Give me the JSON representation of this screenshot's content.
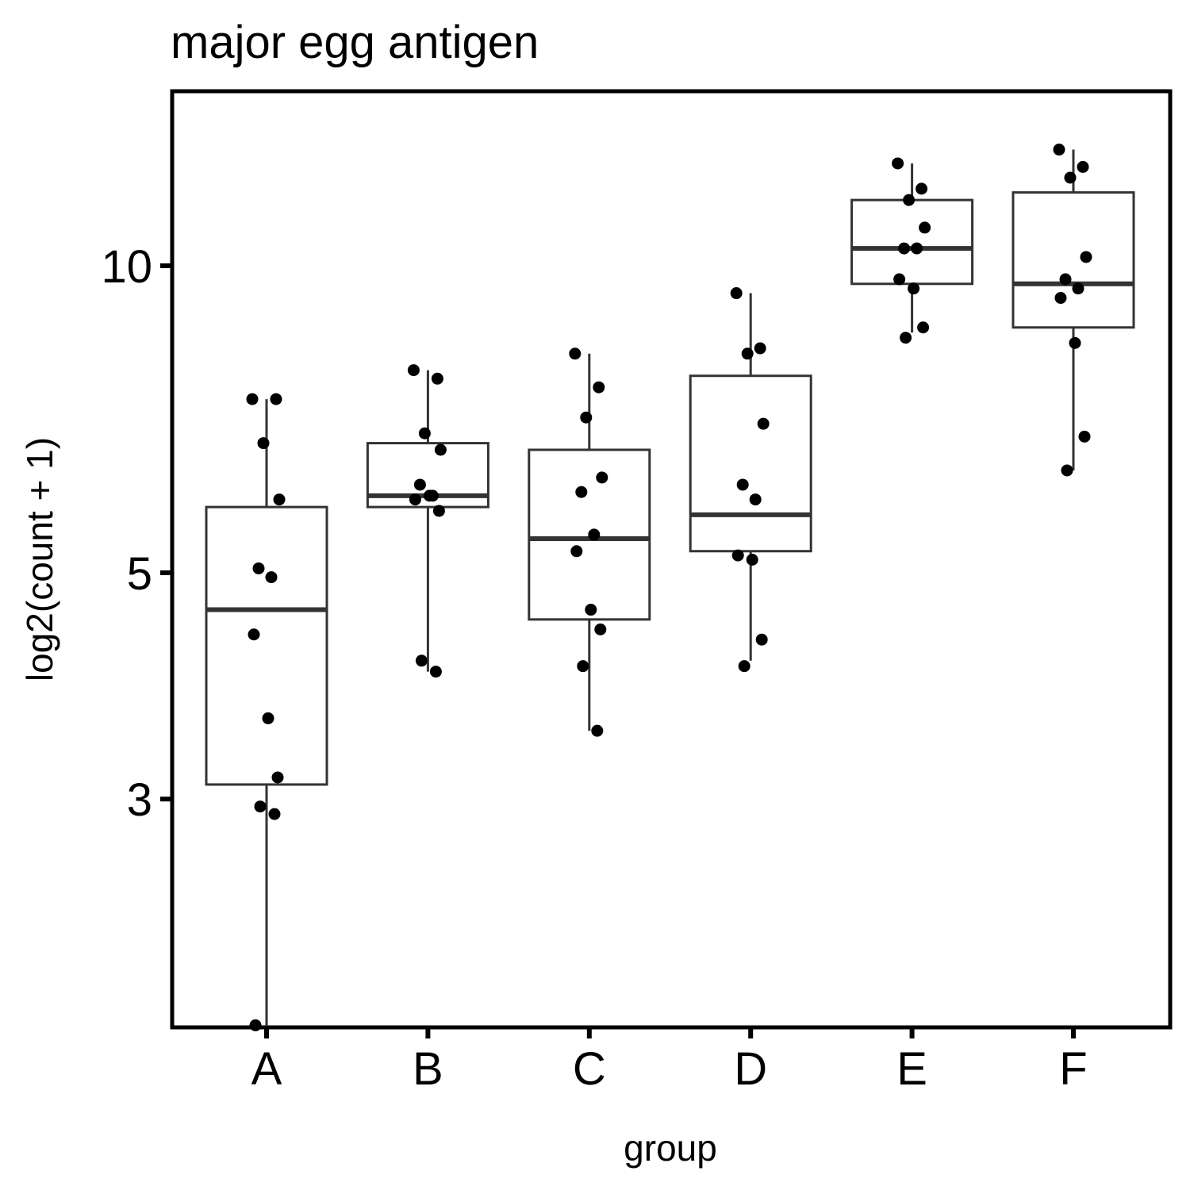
{
  "chart_data": {
    "type": "box",
    "title": "major egg antigen",
    "xlabel": "group",
    "ylabel": "log2(count + 1)",
    "y_scale": "log10",
    "ylim": [
      1.7,
      13.0
    ],
    "y_ticks": [
      3,
      5,
      10
    ],
    "y_tick_labels": [
      "3",
      "5",
      "10"
    ],
    "grid": false,
    "legend": "none",
    "categories": [
      "A",
      "B",
      "C",
      "D",
      "E",
      "F"
    ],
    "boxes": [
      {
        "group": "A",
        "whisker_low": 1.8,
        "q1": 3.1,
        "median": 4.6,
        "q3": 5.8,
        "whisker_high": 7.4
      },
      {
        "group": "B",
        "whisker_low": 4.0,
        "q1": 5.8,
        "median": 5.95,
        "q3": 6.7,
        "whisker_high": 7.9
      },
      {
        "group": "C",
        "whisker_low": 3.5,
        "q1": 4.5,
        "median": 5.4,
        "q3": 6.6,
        "whisker_high": 8.2
      },
      {
        "group": "D",
        "whisker_low": 4.1,
        "q1": 5.25,
        "median": 5.7,
        "q3": 7.8,
        "whisker_high": 9.4
      },
      {
        "group": "E",
        "whisker_low": 8.6,
        "q1": 9.6,
        "median": 10.4,
        "q3": 11.6,
        "whisker_high": 12.6
      },
      {
        "group": "F",
        "whisker_low": 6.3,
        "q1": 8.7,
        "median": 9.6,
        "q3": 11.8,
        "whisker_high": 13.0
      }
    ],
    "points": [
      {
        "group": "A",
        "y": 7.4
      },
      {
        "group": "A",
        "y": 7.4
      },
      {
        "group": "A",
        "y": 6.7
      },
      {
        "group": "A",
        "y": 5.9
      },
      {
        "group": "A",
        "y": 5.05
      },
      {
        "group": "A",
        "y": 4.95
      },
      {
        "group": "A",
        "y": 4.35
      },
      {
        "group": "A",
        "y": 3.6
      },
      {
        "group": "A",
        "y": 3.15
      },
      {
        "group": "A",
        "y": 2.95
      },
      {
        "group": "A",
        "y": 2.9
      },
      {
        "group": "A",
        "y": 1.8
      },
      {
        "group": "B",
        "y": 7.9
      },
      {
        "group": "B",
        "y": 7.75
      },
      {
        "group": "B",
        "y": 6.85
      },
      {
        "group": "B",
        "y": 6.6
      },
      {
        "group": "B",
        "y": 6.1
      },
      {
        "group": "B",
        "y": 5.95
      },
      {
        "group": "B",
        "y": 5.9
      },
      {
        "group": "B",
        "y": 5.95
      },
      {
        "group": "B",
        "y": 5.75
      },
      {
        "group": "B",
        "y": 4.1
      },
      {
        "group": "B",
        "y": 4.0
      },
      {
        "group": "C",
        "y": 8.2
      },
      {
        "group": "C",
        "y": 7.6
      },
      {
        "group": "C",
        "y": 7.1
      },
      {
        "group": "C",
        "y": 6.2
      },
      {
        "group": "C",
        "y": 6.0
      },
      {
        "group": "C",
        "y": 5.45
      },
      {
        "group": "C",
        "y": 5.25
      },
      {
        "group": "C",
        "y": 4.6
      },
      {
        "group": "C",
        "y": 4.4
      },
      {
        "group": "C",
        "y": 4.05
      },
      {
        "group": "C",
        "y": 3.5
      },
      {
        "group": "D",
        "y": 9.4
      },
      {
        "group": "D",
        "y": 8.3
      },
      {
        "group": "D",
        "y": 8.2
      },
      {
        "group": "D",
        "y": 7.0
      },
      {
        "group": "D",
        "y": 6.1
      },
      {
        "group": "D",
        "y": 5.9
      },
      {
        "group": "D",
        "y": 5.2
      },
      {
        "group": "D",
        "y": 5.15
      },
      {
        "group": "D",
        "y": 4.3
      },
      {
        "group": "D",
        "y": 4.05
      },
      {
        "group": "E",
        "y": 12.6
      },
      {
        "group": "E",
        "y": 11.9
      },
      {
        "group": "E",
        "y": 11.6
      },
      {
        "group": "E",
        "y": 10.9
      },
      {
        "group": "E",
        "y": 10.4
      },
      {
        "group": "E",
        "y": 10.4
      },
      {
        "group": "E",
        "y": 9.7
      },
      {
        "group": "E",
        "y": 9.5
      },
      {
        "group": "E",
        "y": 8.7
      },
      {
        "group": "E",
        "y": 8.5
      },
      {
        "group": "F",
        "y": 13.0
      },
      {
        "group": "F",
        "y": 12.5
      },
      {
        "group": "F",
        "y": 12.2
      },
      {
        "group": "F",
        "y": 10.2
      },
      {
        "group": "F",
        "y": 9.7
      },
      {
        "group": "F",
        "y": 9.5
      },
      {
        "group": "F",
        "y": 9.3
      },
      {
        "group": "F",
        "y": 8.4
      },
      {
        "group": "F",
        "y": 6.8
      },
      {
        "group": "F",
        "y": 6.3
      }
    ]
  }
}
